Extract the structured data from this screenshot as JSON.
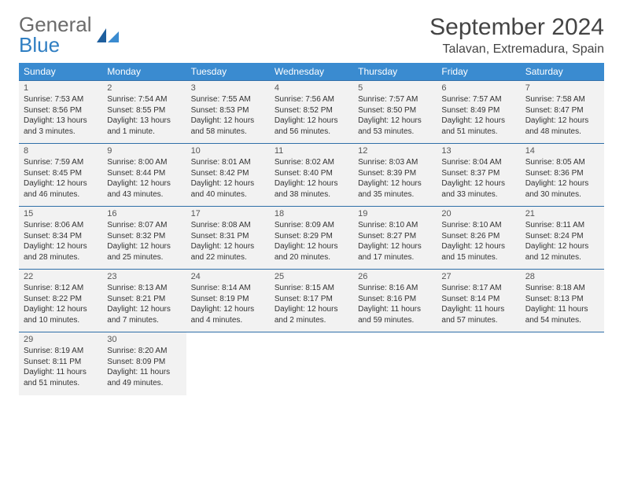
{
  "brand": {
    "part1": "General",
    "part2": "Blue"
  },
  "title": "September 2024",
  "location": "Talavan, Extremadura, Spain",
  "colors": {
    "header_bg": "#3a8bd0",
    "header_text": "#ffffff",
    "row_bg": "#f2f2f2",
    "border": "#2f6fa8",
    "logo_gray": "#6b6b6b",
    "logo_blue": "#2f7ec2"
  },
  "weekdays": [
    "Sunday",
    "Monday",
    "Tuesday",
    "Wednesday",
    "Thursday",
    "Friday",
    "Saturday"
  ],
  "days": [
    {
      "n": "1",
      "sr": "Sunrise: 7:53 AM",
      "ss": "Sunset: 8:56 PM",
      "d1": "Daylight: 13 hours",
      "d2": "and 3 minutes."
    },
    {
      "n": "2",
      "sr": "Sunrise: 7:54 AM",
      "ss": "Sunset: 8:55 PM",
      "d1": "Daylight: 13 hours",
      "d2": "and 1 minute."
    },
    {
      "n": "3",
      "sr": "Sunrise: 7:55 AM",
      "ss": "Sunset: 8:53 PM",
      "d1": "Daylight: 12 hours",
      "d2": "and 58 minutes."
    },
    {
      "n": "4",
      "sr": "Sunrise: 7:56 AM",
      "ss": "Sunset: 8:52 PM",
      "d1": "Daylight: 12 hours",
      "d2": "and 56 minutes."
    },
    {
      "n": "5",
      "sr": "Sunrise: 7:57 AM",
      "ss": "Sunset: 8:50 PM",
      "d1": "Daylight: 12 hours",
      "d2": "and 53 minutes."
    },
    {
      "n": "6",
      "sr": "Sunrise: 7:57 AM",
      "ss": "Sunset: 8:49 PM",
      "d1": "Daylight: 12 hours",
      "d2": "and 51 minutes."
    },
    {
      "n": "7",
      "sr": "Sunrise: 7:58 AM",
      "ss": "Sunset: 8:47 PM",
      "d1": "Daylight: 12 hours",
      "d2": "and 48 minutes."
    },
    {
      "n": "8",
      "sr": "Sunrise: 7:59 AM",
      "ss": "Sunset: 8:45 PM",
      "d1": "Daylight: 12 hours",
      "d2": "and 46 minutes."
    },
    {
      "n": "9",
      "sr": "Sunrise: 8:00 AM",
      "ss": "Sunset: 8:44 PM",
      "d1": "Daylight: 12 hours",
      "d2": "and 43 minutes."
    },
    {
      "n": "10",
      "sr": "Sunrise: 8:01 AM",
      "ss": "Sunset: 8:42 PM",
      "d1": "Daylight: 12 hours",
      "d2": "and 40 minutes."
    },
    {
      "n": "11",
      "sr": "Sunrise: 8:02 AM",
      "ss": "Sunset: 8:40 PM",
      "d1": "Daylight: 12 hours",
      "d2": "and 38 minutes."
    },
    {
      "n": "12",
      "sr": "Sunrise: 8:03 AM",
      "ss": "Sunset: 8:39 PM",
      "d1": "Daylight: 12 hours",
      "d2": "and 35 minutes."
    },
    {
      "n": "13",
      "sr": "Sunrise: 8:04 AM",
      "ss": "Sunset: 8:37 PM",
      "d1": "Daylight: 12 hours",
      "d2": "and 33 minutes."
    },
    {
      "n": "14",
      "sr": "Sunrise: 8:05 AM",
      "ss": "Sunset: 8:36 PM",
      "d1": "Daylight: 12 hours",
      "d2": "and 30 minutes."
    },
    {
      "n": "15",
      "sr": "Sunrise: 8:06 AM",
      "ss": "Sunset: 8:34 PM",
      "d1": "Daylight: 12 hours",
      "d2": "and 28 minutes."
    },
    {
      "n": "16",
      "sr": "Sunrise: 8:07 AM",
      "ss": "Sunset: 8:32 PM",
      "d1": "Daylight: 12 hours",
      "d2": "and 25 minutes."
    },
    {
      "n": "17",
      "sr": "Sunrise: 8:08 AM",
      "ss": "Sunset: 8:31 PM",
      "d1": "Daylight: 12 hours",
      "d2": "and 22 minutes."
    },
    {
      "n": "18",
      "sr": "Sunrise: 8:09 AM",
      "ss": "Sunset: 8:29 PM",
      "d1": "Daylight: 12 hours",
      "d2": "and 20 minutes."
    },
    {
      "n": "19",
      "sr": "Sunrise: 8:10 AM",
      "ss": "Sunset: 8:27 PM",
      "d1": "Daylight: 12 hours",
      "d2": "and 17 minutes."
    },
    {
      "n": "20",
      "sr": "Sunrise: 8:10 AM",
      "ss": "Sunset: 8:26 PM",
      "d1": "Daylight: 12 hours",
      "d2": "and 15 minutes."
    },
    {
      "n": "21",
      "sr": "Sunrise: 8:11 AM",
      "ss": "Sunset: 8:24 PM",
      "d1": "Daylight: 12 hours",
      "d2": "and 12 minutes."
    },
    {
      "n": "22",
      "sr": "Sunrise: 8:12 AM",
      "ss": "Sunset: 8:22 PM",
      "d1": "Daylight: 12 hours",
      "d2": "and 10 minutes."
    },
    {
      "n": "23",
      "sr": "Sunrise: 8:13 AM",
      "ss": "Sunset: 8:21 PM",
      "d1": "Daylight: 12 hours",
      "d2": "and 7 minutes."
    },
    {
      "n": "24",
      "sr": "Sunrise: 8:14 AM",
      "ss": "Sunset: 8:19 PM",
      "d1": "Daylight: 12 hours",
      "d2": "and 4 minutes."
    },
    {
      "n": "25",
      "sr": "Sunrise: 8:15 AM",
      "ss": "Sunset: 8:17 PM",
      "d1": "Daylight: 12 hours",
      "d2": "and 2 minutes."
    },
    {
      "n": "26",
      "sr": "Sunrise: 8:16 AM",
      "ss": "Sunset: 8:16 PM",
      "d1": "Daylight: 11 hours",
      "d2": "and 59 minutes."
    },
    {
      "n": "27",
      "sr": "Sunrise: 8:17 AM",
      "ss": "Sunset: 8:14 PM",
      "d1": "Daylight: 11 hours",
      "d2": "and 57 minutes."
    },
    {
      "n": "28",
      "sr": "Sunrise: 8:18 AM",
      "ss": "Sunset: 8:13 PM",
      "d1": "Daylight: 11 hours",
      "d2": "and 54 minutes."
    },
    {
      "n": "29",
      "sr": "Sunrise: 8:19 AM",
      "ss": "Sunset: 8:11 PM",
      "d1": "Daylight: 11 hours",
      "d2": "and 51 minutes."
    },
    {
      "n": "30",
      "sr": "Sunrise: 8:20 AM",
      "ss": "Sunset: 8:09 PM",
      "d1": "Daylight: 11 hours",
      "d2": "and 49 minutes."
    }
  ]
}
